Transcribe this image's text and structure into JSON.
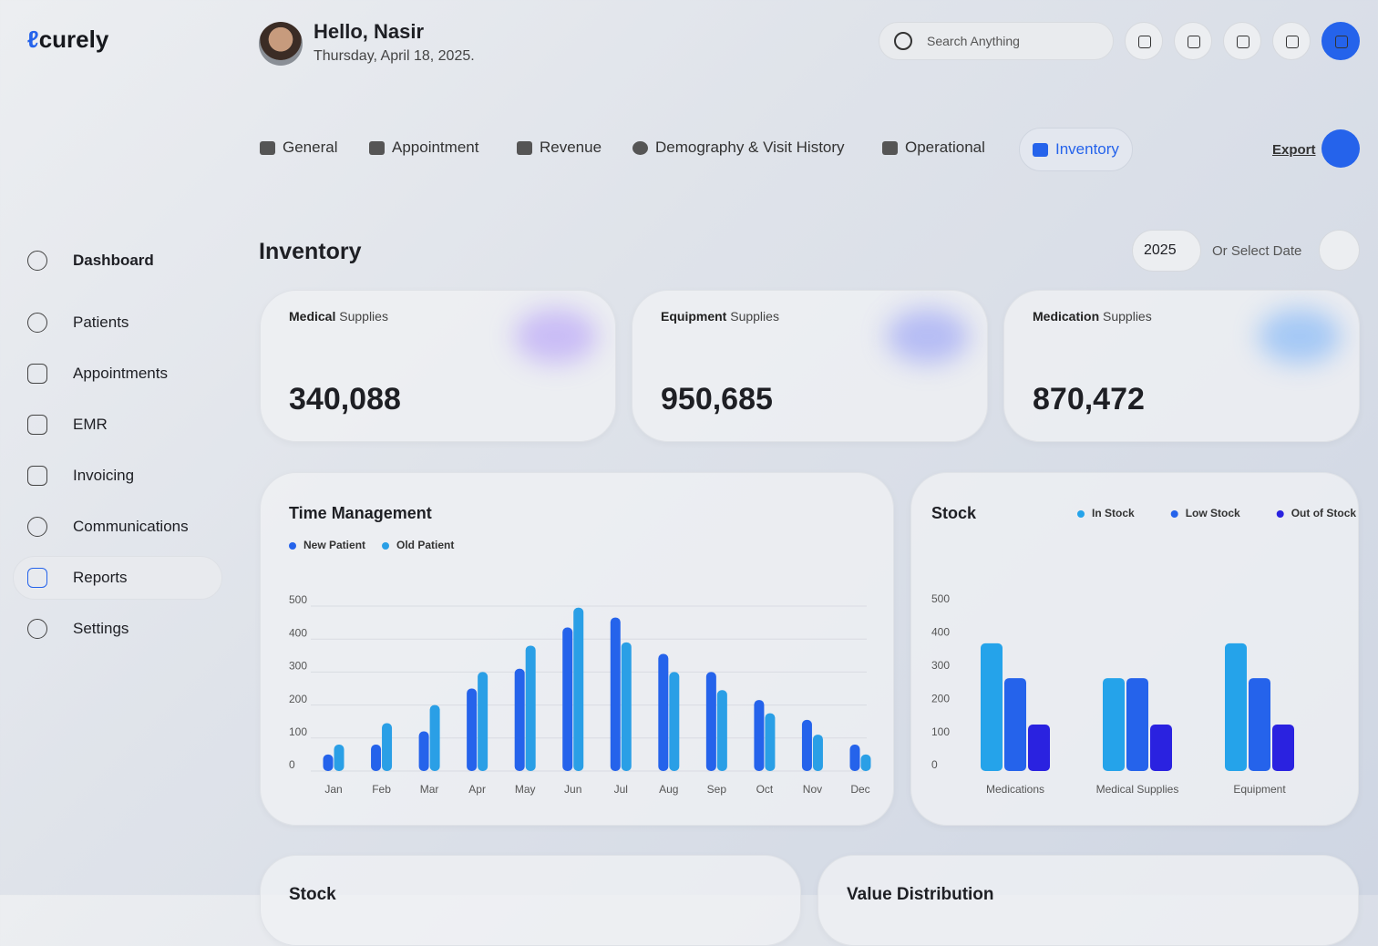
{
  "brand": "curely",
  "header": {
    "greeting": "Hello, Nasir",
    "date": "Thursday, April 18, 2025.",
    "search_placeholder": "Search Anything"
  },
  "tabs": [
    "General",
    "Appointment",
    "Revenue",
    "Demography & Visit History",
    "Operational",
    "Inventory"
  ],
  "export": "Export",
  "sidebar": [
    "Dashboard",
    "Patients",
    "Appointments",
    "EMR",
    "Invoicing",
    "Communications",
    "Reports",
    "Settings"
  ],
  "page": {
    "title": "Inventory",
    "year": "2025",
    "select_date": "Or Select Date"
  },
  "cards": [
    {
      "bold": "Medical",
      "rest": "Supplies",
      "value": "340,088"
    },
    {
      "bold": "Equipment",
      "rest": "Supplies",
      "value": "950,685"
    },
    {
      "bold": "Medication",
      "rest": "Supplies",
      "value": "870,472"
    }
  ],
  "chart_data": [
    {
      "type": "bar",
      "title": "Time Management",
      "categories": [
        "Jan",
        "Feb",
        "Mar",
        "Apr",
        "May",
        "Jun",
        "Jul",
        "Aug",
        "Sep",
        "Oct",
        "Nov",
        "Dec"
      ],
      "series": [
        {
          "name": "New Patient",
          "color": "#2563eb",
          "values": [
            50,
            80,
            120,
            250,
            310,
            435,
            465,
            355,
            300,
            215,
            155,
            80
          ]
        },
        {
          "name": "Old Patient",
          "color": "#2a9fe6",
          "values": [
            80,
            145,
            200,
            300,
            380,
            495,
            390,
            300,
            245,
            175,
            110,
            50
          ]
        }
      ],
      "ylim": [
        0,
        500
      ],
      "yticks": [
        0,
        100,
        200,
        300,
        400,
        500
      ],
      "grid": true,
      "legend": "top-left"
    },
    {
      "type": "bar",
      "title": "Stock",
      "categories": [
        "Medications",
        "Medical Supplies",
        "Equipment"
      ],
      "series": [
        {
          "name": "In Stock",
          "color": "#25a3ea",
          "values": [
            385,
            280,
            385
          ]
        },
        {
          "name": "Low Stock",
          "color": "#2563eb",
          "values": [
            280,
            280,
            280
          ]
        },
        {
          "name": "Out of Stock",
          "color": "#2a22e0",
          "values": [
            140,
            140,
            140
          ]
        }
      ],
      "ylim": [
        0,
        500
      ],
      "yticks": [
        0,
        100,
        200,
        300,
        400,
        500
      ],
      "grid": false,
      "legend": "top-right"
    }
  ],
  "bottom_cards": [
    "Stock",
    "Value Distribution"
  ]
}
